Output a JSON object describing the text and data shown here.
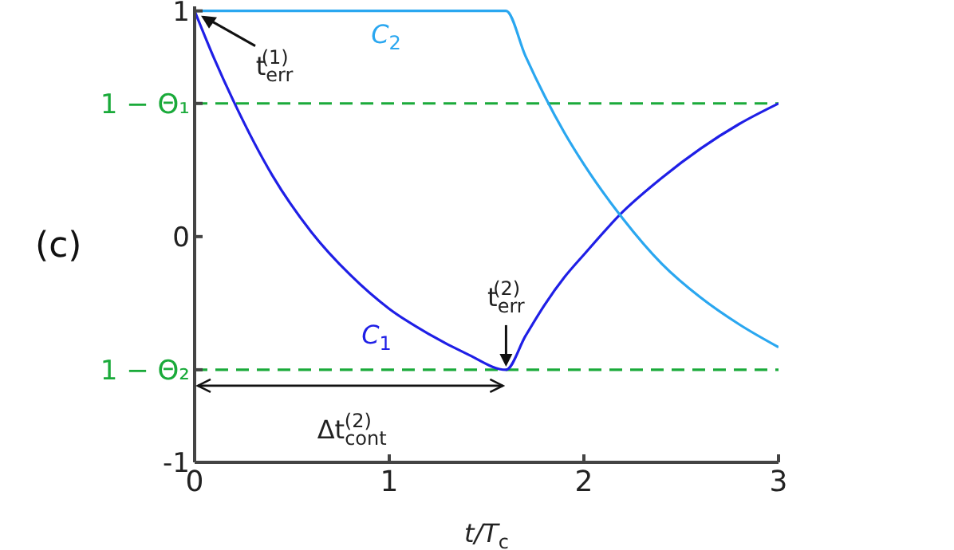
{
  "chart_data": {
    "type": "line",
    "xlabel": "t/T$_{c}$",
    "xlim": [
      0,
      3
    ],
    "xticks": [
      0,
      1,
      2,
      3
    ],
    "ylim": [
      -1,
      1.02
    ],
    "yticks": [
      1,
      {
        "value": 0.59,
        "label": "1 − Θ₁"
      },
      0,
      {
        "value": -0.59,
        "label": "1 − Θ₂"
      },
      -1
    ],
    "marker": "none",
    "line_style": "solid",
    "series": [
      {
        "name": "C$_{1}$",
        "color": "#1f1fe6",
        "x": [
          0,
          0.1,
          0.2,
          0.4,
          0.6,
          0.8,
          1.0,
          1.2,
          1.4,
          1.6,
          1.7,
          1.8,
          1.9,
          2.0,
          2.2,
          2.4,
          2.6,
          2.8,
          3.0
        ],
        "values": [
          1,
          0.79,
          0.6,
          0.27,
          0.02,
          -0.17,
          -0.32,
          -0.43,
          -0.52,
          -0.59,
          -0.44,
          -0.3,
          -0.18,
          -0.08,
          0.11,
          0.26,
          0.39,
          0.5,
          0.59
        ]
      },
      {
        "name": "C$_{2}$",
        "color": "#2aa7f0",
        "x": [
          0,
          1.6,
          1.7,
          1.8,
          1.9,
          2.0,
          2.2,
          2.4,
          2.6,
          2.8,
          3.0
        ],
        "values": [
          1,
          1,
          0.8,
          0.62,
          0.46,
          0.32,
          0.08,
          -0.12,
          -0.27,
          -0.39,
          -0.49
        ]
      }
    ],
    "ref_lines": [
      {
        "axis": "y",
        "value": 0.59,
        "color": "#1aaa3a",
        "line_style": "dashed"
      },
      {
        "axis": "y",
        "value": -0.59,
        "color": "#1aaa3a",
        "line_style": "dashed"
      }
    ],
    "annotations": [
      "(c)",
      {
        "text": "t$_{err}$$^{(1)}$",
        "x": 0,
        "y": 1
      },
      {
        "text": "t$_{err}$$^{(2)}$",
        "x": 1.6,
        "y": -0.59
      },
      "Δt$_{cont}$$^{(2)}$"
    ]
  }
}
